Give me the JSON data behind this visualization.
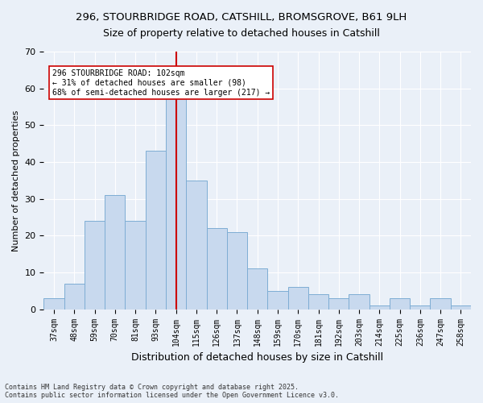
{
  "title_line1": "296, STOURBRIDGE ROAD, CATSHILL, BROMSGROVE, B61 9LH",
  "title_line2": "Size of property relative to detached houses in Catshill",
  "xlabel": "Distribution of detached houses by size in Catshill",
  "ylabel": "Number of detached properties",
  "bar_labels": [
    "37sqm",
    "48sqm",
    "59sqm",
    "70sqm",
    "81sqm",
    "93sqm",
    "104sqm",
    "115sqm",
    "126sqm",
    "137sqm",
    "148sqm",
    "159sqm",
    "170sqm",
    "181sqm",
    "192sqm",
    "203sqm",
    "214sqm",
    "225sqm",
    "236sqm",
    "247sqm",
    "258sqm"
  ],
  "bar_values": [
    3,
    7,
    24,
    31,
    24,
    43,
    62,
    35,
    22,
    21,
    11,
    5,
    6,
    4,
    3,
    4,
    1,
    3,
    1,
    3,
    1
  ],
  "bar_color": "#c8d9ee",
  "bar_edge_color": "#7eadd4",
  "vline_x": 6,
  "vline_color": "#cc0000",
  "annotation_text": "296 STOURBRIDGE ROAD: 102sqm\n← 31% of detached houses are smaller (98)\n68% of semi-detached houses are larger (217) →",
  "annotation_box_color": "#ffffff",
  "annotation_border_color": "#cc0000",
  "bg_color": "#eaf0f8",
  "grid_color": "#ffffff",
  "footer_text": "Contains HM Land Registry data © Crown copyright and database right 2025.\nContains public sector information licensed under the Open Government Licence v3.0.",
  "ylim": [
    0,
    70
  ],
  "yticks": [
    0,
    10,
    20,
    30,
    40,
    50,
    60,
    70
  ]
}
